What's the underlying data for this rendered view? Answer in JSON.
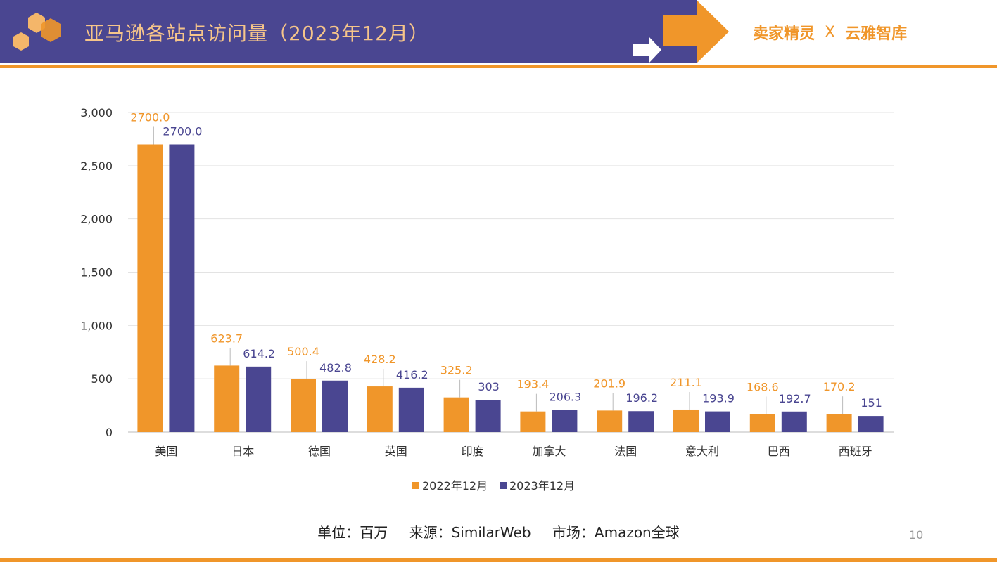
{
  "header": {
    "title": "亚马逊各站点访问量（2023年12月）",
    "logo_left": "卖家精灵",
    "logo_sep": "X",
    "logo_right": "云雅智库"
  },
  "footer": {
    "unit": "单位：百万",
    "source": "来源：SimilarWeb",
    "market": "市场：Amazon全球"
  },
  "page_number": "10",
  "colors": {
    "brand_purple": "#4a4691",
    "brand_orange": "#f0962a"
  },
  "chart_data": {
    "type": "bar",
    "categories": [
      "美国",
      "日本",
      "德国",
      "英国",
      "印度",
      "加拿大",
      "法国",
      "意大利",
      "巴西",
      "西班牙"
    ],
    "series": [
      {
        "name": "2022年12月",
        "color": "#f0962a",
        "values": [
          2700.0,
          623.7,
          500.4,
          428.2,
          325.2,
          193.4,
          201.9,
          211.1,
          168.6,
          170.2
        ],
        "labels": [
          "2700.0",
          "623.7",
          "500.4",
          "428.2",
          "325.2",
          "193.4",
          "201.9",
          "211.1",
          "168.6",
          "170.2"
        ]
      },
      {
        "name": "2023年12月",
        "color": "#4a4691",
        "values": [
          2700.0,
          614.2,
          482.8,
          416.2,
          303,
          206.3,
          196.2,
          193.9,
          192.7,
          151
        ],
        "labels": [
          "2700.0",
          "614.2",
          "482.8",
          "416.2",
          "303",
          "206.3",
          "196.2",
          "193.9",
          "192.7",
          "151"
        ]
      }
    ],
    "yticks": [
      "0",
      "500",
      "1,000",
      "1,500",
      "2,000",
      "2,500",
      "3,000"
    ],
    "ylim": [
      0,
      3000
    ],
    "grid": true,
    "legend": "bottom"
  }
}
